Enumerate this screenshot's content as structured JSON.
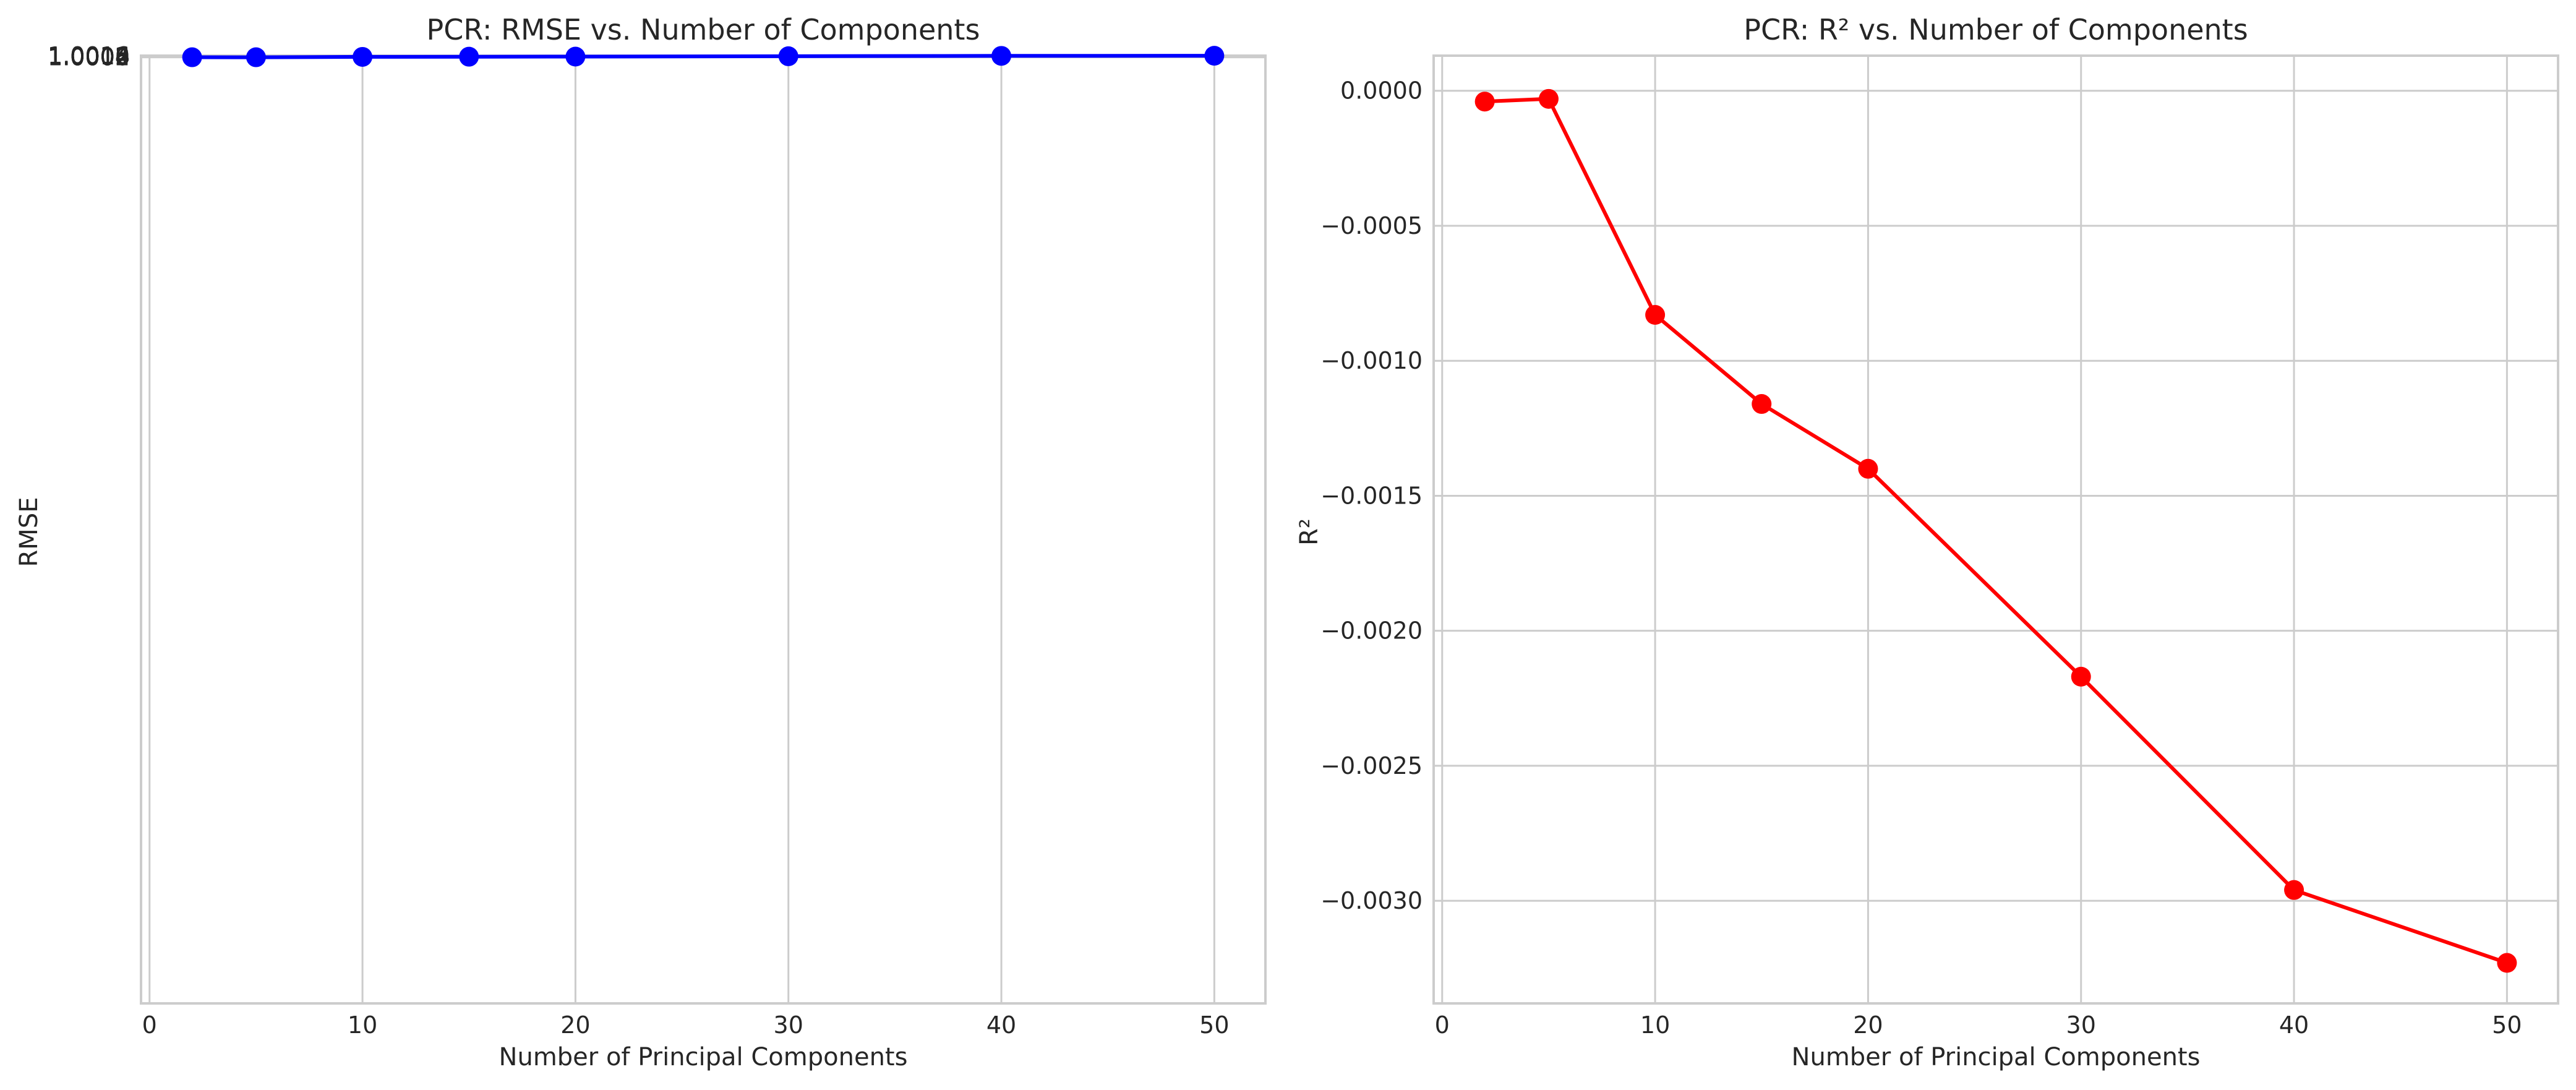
{
  "chart_data": [
    {
      "type": "line",
      "title": "PCR: RMSE vs. Number of Components",
      "xlabel": "Number of Principal Components",
      "ylabel": "RMSE",
      "x": [
        2,
        5,
        10,
        15,
        20,
        30,
        40,
        50
      ],
      "series": [
        {
          "values": [
            1.00005,
            1.000045,
            1.000448,
            1.000612,
            1.000733,
            1.001113,
            1.001509,
            1.001645
          ],
          "color": "#0000ff",
          "marker": "circle"
        }
      ],
      "xlim": [
        -0.4,
        52.4
      ],
      "ylim": [
        -3e-05,
        1.001715
      ],
      "y_offset_note": "",
      "xticks": [
        0,
        10,
        20,
        30,
        40,
        50
      ],
      "xtick_labels": [
        "0",
        "10",
        "20",
        "30",
        "40",
        "50"
      ],
      "yticks": [
        1.0,
        1.0002,
        1.0004,
        1.0006,
        1.0008,
        1.001,
        1.0012,
        1.0014,
        1.0016
      ],
      "ytick_labels": [
        "1.0000",
        "1.0002",
        "1.0004",
        "1.0006",
        "1.0008",
        "1.0010",
        "1.0012",
        "1.0014",
        "1.0016"
      ],
      "grid": true
    },
    {
      "type": "line",
      "title": "PCR: R² vs. Number of Components",
      "xlabel": "Number of Principal Components",
      "ylabel": "R²",
      "x": [
        2,
        5,
        10,
        15,
        20,
        30,
        40,
        50
      ],
      "series": [
        {
          "values": [
            -4e-05,
            -3e-05,
            -0.00083,
            -0.00116,
            -0.0014,
            -0.00217,
            -0.00296,
            -0.00323
          ],
          "color": "#ff0000",
          "marker": "circle"
        }
      ],
      "xlim": [
        -0.4,
        52.4
      ],
      "ylim": [
        -0.00338,
        0.00013
      ],
      "xticks": [
        0,
        10,
        20,
        30,
        40,
        50
      ],
      "xtick_labels": [
        "0",
        "10",
        "20",
        "30",
        "40",
        "50"
      ],
      "yticks": [
        0.0,
        -0.0005,
        -0.001,
        -0.0015,
        -0.002,
        -0.0025,
        -0.003
      ],
      "ytick_labels": [
        "0.0000",
        "−0.0005",
        "−0.0010",
        "−0.0015",
        "−0.0020",
        "−0.0025",
        "−0.0030"
      ],
      "grid": true
    }
  ]
}
